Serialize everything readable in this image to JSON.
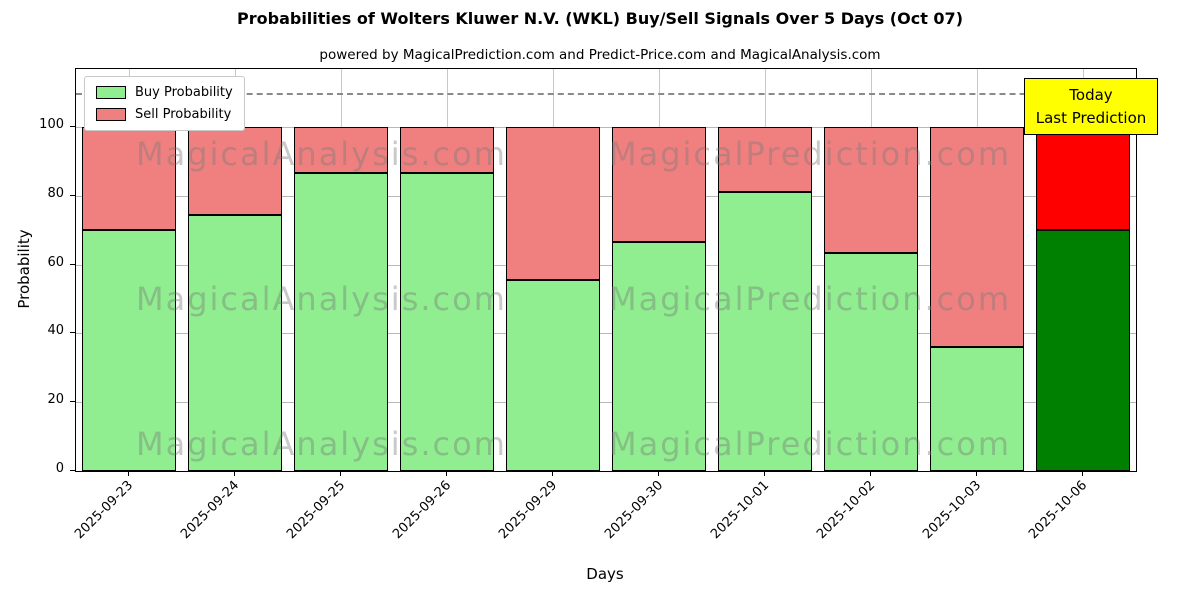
{
  "title": "Probabilities of Wolters Kluwer N.V. (WKL) Buy/Sell Signals Over 5 Days (Oct 07)",
  "subtitle": "powered by MagicalPrediction.com and Predict-Price.com and MagicalAnalysis.com",
  "xlabel": "Days",
  "ylabel": "Probability",
  "legend": {
    "buy": "Buy Probability",
    "sell": "Sell Probability"
  },
  "annotation": {
    "line1": "Today",
    "line2": "Last Prediction",
    "bg_color": "#ffff00"
  },
  "watermarks": {
    "texts": [
      "MagicalAnalysis.com",
      "MagicalPrediction.com"
    ]
  },
  "chart_data": {
    "type": "bar",
    "stacked": true,
    "title": "Probabilities of Wolters Kluwer N.V. (WKL) Buy/Sell Signals Over 5 Days (Oct 07)",
    "xlabel": "Days",
    "ylabel": "Probability",
    "categories": [
      "2025-09-23",
      "2025-09-24",
      "2025-09-25",
      "2025-09-26",
      "2025-09-29",
      "2025-09-30",
      "2025-10-01",
      "2025-10-02",
      "2025-10-03",
      "2025-10-06"
    ],
    "series": [
      {
        "name": "Buy Probability",
        "values": [
          70,
          74.5,
          86.5,
          86.5,
          55.5,
          66.5,
          81,
          63.5,
          36,
          70
        ]
      },
      {
        "name": "Sell Probability",
        "values": [
          30,
          25.5,
          13.5,
          13.5,
          44.5,
          33.5,
          19,
          36.5,
          64,
          30
        ]
      }
    ],
    "yticks": [
      0,
      20,
      40,
      60,
      80,
      100
    ],
    "ylim": [
      0,
      117
    ],
    "dashed_line_y": 110,
    "grid": true,
    "legend_position": "upper-left",
    "colors": {
      "buy": "#90ee90",
      "sell": "#f08080",
      "buy_last": "#008000",
      "sell_last": "#ff0000",
      "bar_edge": "#000000"
    },
    "highlight_last_bar": true
  }
}
